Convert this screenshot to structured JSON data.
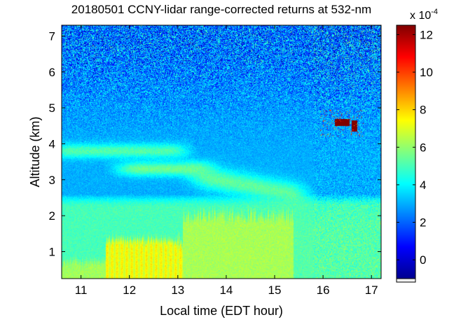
{
  "chart_data": {
    "type": "heatmap",
    "title": "20180501 CCNY-lidar range-corrected returns at 532-nm",
    "xlabel": "Local time (EDT hour)",
    "ylabel": "Altitude (km)",
    "xlim": [
      10.6,
      17.2
    ],
    "ylim": [
      0.25,
      7.3
    ],
    "x_ticks": [
      11,
      12,
      13,
      14,
      15,
      16,
      17
    ],
    "y_ticks": [
      1,
      2,
      3,
      4,
      5,
      6,
      7
    ],
    "colorbar": {
      "multiplier_label": "x 10",
      "exponent": "-4",
      "clim": [
        -1,
        12.5
      ],
      "ticks": [
        0,
        2,
        4,
        6,
        8,
        10,
        12
      ],
      "colormap": "jet"
    },
    "grid": false,
    "features": {
      "boundary_layer": [
        {
          "x": [
            10.6,
            11.5
          ],
          "top_km": 0.7,
          "value": 6.2
        },
        {
          "x": [
            11.5,
            13.1
          ],
          "top_km": 1.3,
          "value": 7.2
        },
        {
          "x": [
            13.1,
            15.4
          ],
          "top_km": 2.0,
          "value": 6.3
        },
        {
          "x": [
            15.4,
            17.2
          ],
          "top_km": 1.9,
          "value": 5.2
        }
      ],
      "residual_layer": {
        "top_km": 2.5,
        "value": 5.0
      },
      "aerosol_layers": [
        {
          "x": [
            12.0,
            13.5
          ],
          "y": [
            3.1,
            3.5
          ],
          "value": 5.8
        },
        {
          "x": [
            13.5,
            15.5
          ],
          "y": [
            2.75,
            3.4
          ],
          "value": 5.6
        },
        {
          "x": [
            10.6,
            13.0
          ],
          "y": [
            3.6,
            4.0
          ],
          "value": 5.4
        }
      ],
      "clouds": [
        {
          "x": [
            16.25,
            16.55
          ],
          "y": [
            4.5,
            4.7
          ],
          "value": 12.5
        },
        {
          "x": [
            16.6,
            16.72
          ],
          "y": [
            4.35,
            4.65
          ],
          "value": 12.5
        }
      ],
      "free_troposphere_value": 2.6
    }
  }
}
